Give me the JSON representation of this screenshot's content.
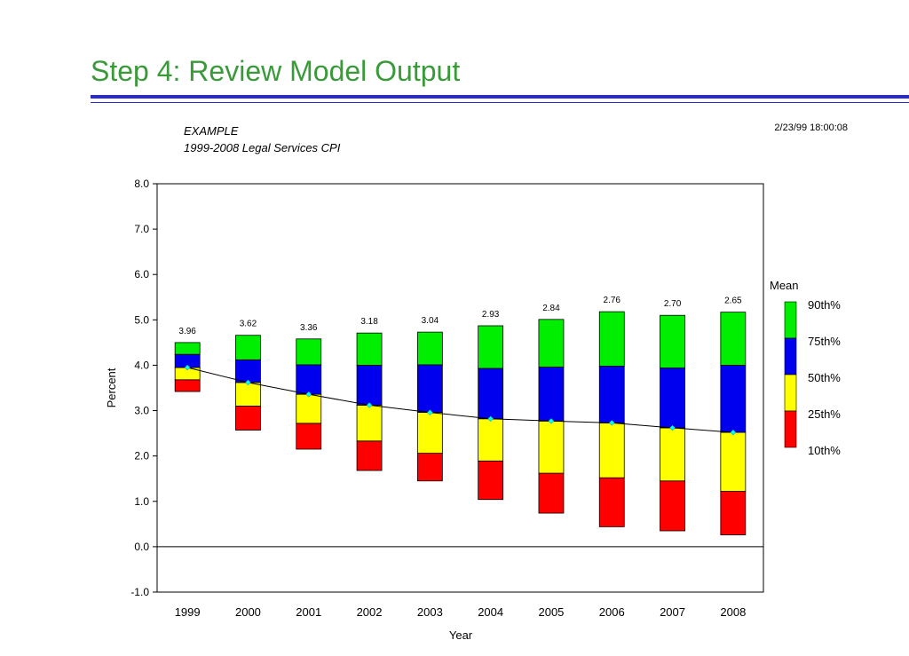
{
  "slide": {
    "title": "Step 4:  Review Model Output"
  },
  "chart_data": {
    "type": "bar",
    "subtype": "stacked-percentile-bands-with-mean-line",
    "title": "EXAMPLE",
    "subtitle": "1999-2008 Legal Services CPI",
    "timestamp": "2/23/99 18:00:08",
    "xlabel": "Year",
    "ylabel": "Percent",
    "ylim": [
      -1.0,
      8.0
    ],
    "yticks": [
      "8.0",
      "7.0",
      "6.0",
      "5.0",
      "4.0",
      "3.0",
      "2.0",
      "1.0",
      "0.0",
      "-1.0"
    ],
    "ytick_values": [
      8,
      7,
      6,
      5,
      4,
      3,
      2,
      1,
      0,
      -1
    ],
    "categories": [
      "1999",
      "2000",
      "2001",
      "2002",
      "2003",
      "2004",
      "2005",
      "2006",
      "2007",
      "2008"
    ],
    "mean_labels": [
      "3.96",
      "3.62",
      "3.36",
      "3.18",
      "3.04",
      "2.93",
      "2.84",
      "2.76",
      "2.70",
      "2.65"
    ],
    "mean": [
      3.96,
      3.62,
      3.36,
      3.18,
      3.04,
      2.93,
      2.84,
      2.76,
      2.7,
      2.65
    ],
    "p10": [
      3.42,
      2.57,
      2.15,
      1.68,
      1.45,
      1.04,
      0.74,
      0.44,
      0.35,
      0.26
    ],
    "p25": [
      3.68,
      3.1,
      2.72,
      2.33,
      2.06,
      1.89,
      1.62,
      1.52,
      1.45,
      1.22
    ],
    "p50": [
      3.95,
      3.62,
      3.36,
      3.12,
      2.96,
      2.82,
      2.77,
      2.73,
      2.62,
      2.52
    ],
    "p75": [
      4.24,
      4.12,
      4.01,
      4.0,
      4.01,
      3.93,
      3.96,
      3.98,
      3.94,
      4.0
    ],
    "p90": [
      4.5,
      4.66,
      4.58,
      4.71,
      4.73,
      4.87,
      5.01,
      5.18,
      5.1,
      5.17
    ],
    "legend": {
      "placement": "right",
      "title": "Mean",
      "items": [
        {
          "label": "90th%",
          "color": "#00ee00"
        },
        {
          "label": "75th%",
          "color": "#0000ee"
        },
        {
          "label": "50th%",
          "color": "#ffff00"
        },
        {
          "label": "25th%",
          "color": "#ff0000"
        },
        {
          "label": "10th%",
          "color": ""
        }
      ]
    },
    "colors": {
      "band_90": "#00ee00",
      "band_75": "#0000ee",
      "band_50": "#ffff00",
      "band_25": "#ff0000",
      "mean_marker": "#00ffff",
      "mean_line": "#000000"
    },
    "grid": false
  }
}
